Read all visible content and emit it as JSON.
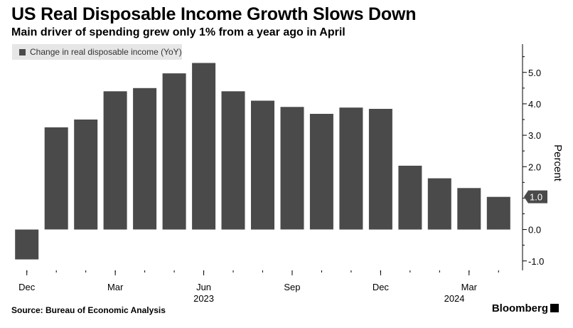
{
  "header": {
    "title": "US Real Disposable Income Growth Slows Down",
    "subtitle": "Main driver of spending grew only 1% from a year ago in April"
  },
  "footer": {
    "source": "Source: Bureau of Economic Analysis",
    "brand": "Bloomberg"
  },
  "colors": {
    "bar": "#4a4a4a",
    "legend_bg": "#e6e6e6",
    "callout": "#4a4a4a"
  },
  "chart_data": {
    "type": "bar",
    "series": [
      {
        "name": "Change in real disposable income (YoY)",
        "values": [
          -0.95,
          3.25,
          3.5,
          4.4,
          4.5,
          4.97,
          5.3,
          4.4,
          4.1,
          3.9,
          3.68,
          3.88,
          3.84,
          2.03,
          1.63,
          1.32,
          1.04
        ]
      }
    ],
    "periods": [
      "2022-12",
      "2023-01",
      "2023-02",
      "2023-03",
      "2023-04",
      "2023-05",
      "2023-06",
      "2023-07",
      "2023-08",
      "2023-09",
      "2023-10",
      "2023-11",
      "2023-12",
      "2024-01",
      "2024-02",
      "2024-03",
      "2024-04"
    ],
    "x_tick_labels": [
      {
        "index": 0,
        "label": "Dec"
      },
      {
        "index": 3,
        "label": "Mar"
      },
      {
        "index": 6,
        "label": "Jun"
      },
      {
        "index": 9,
        "label": "Sep"
      },
      {
        "index": 12,
        "label": "Dec"
      },
      {
        "index": 15,
        "label": "Mar"
      }
    ],
    "year_labels": [
      {
        "index": 6,
        "label": "2023"
      },
      {
        "index": 14.5,
        "label": "2024"
      }
    ],
    "y_ticks": [
      -1.0,
      0.0,
      1.0,
      2.0,
      3.0,
      4.0,
      5.0
    ],
    "y_tick_labels": [
      "-1.0",
      "0.0",
      "1.0",
      "2.0",
      "3.0",
      "4.0",
      "5.0"
    ],
    "ylim": [
      -1.3,
      5.9
    ],
    "ylabel": "Percent",
    "axis_position": "right",
    "legend_position": "top-left",
    "last_value_label": "1.0",
    "grid": false
  }
}
